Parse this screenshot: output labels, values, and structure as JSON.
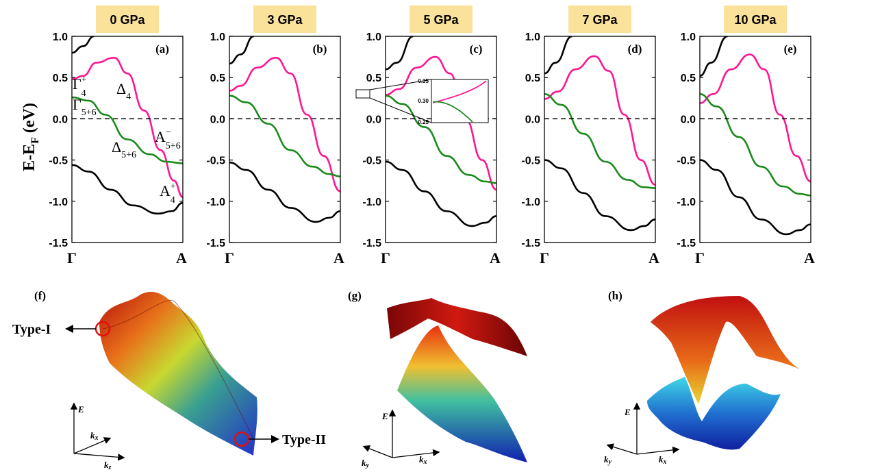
{
  "colors": {
    "band_black": "#000000",
    "band_magenta": "#ff1493",
    "band_green": "#1a8a1a",
    "title_box": "#fbe29a",
    "circle": "#e01010"
  },
  "ylabel": "E-E",
  "ylabel_sub": "F",
  "ylabel_unit": "(eV)",
  "yticks": [
    "1.0",
    "0.5",
    "0.0",
    "-0.5",
    "-1.0",
    "-1.5"
  ],
  "xticks": [
    "Γ",
    "A"
  ],
  "chart_data": [
    {
      "type": "line",
      "title": "0 GPa",
      "label": "(a)",
      "ylim": [
        -1.5,
        1.0
      ],
      "x": [
        0,
        1
      ],
      "xtick_labels": [
        "Γ",
        "A"
      ],
      "series": [
        {
          "values": [
            [
              0,
              0.8
            ],
            [
              0.1,
              0.88
            ],
            [
              0.2,
              1.0
            ]
          ]
        },
        {
          "values": [
            [
              0,
              0.48
            ],
            [
              0.1,
              0.52
            ],
            [
              0.22,
              0.68
            ],
            [
              0.38,
              0.74
            ],
            [
              0.5,
              0.55
            ],
            [
              0.65,
              0.1
            ],
            [
              0.8,
              -0.38
            ],
            [
              0.92,
              -0.75
            ],
            [
              1.0,
              -0.95
            ]
          ]
        },
        {
          "values": [
            [
              0,
              0.26
            ],
            [
              0.15,
              0.22
            ],
            [
              0.3,
              0.05
            ],
            [
              0.5,
              -0.25
            ],
            [
              0.7,
              -0.43
            ],
            [
              0.85,
              -0.52
            ],
            [
              1.0,
              -0.54
            ]
          ]
        },
        {
          "values": [
            [
              0,
              -0.56
            ],
            [
              0.15,
              -0.64
            ],
            [
              0.35,
              -0.86
            ],
            [
              0.55,
              -1.05
            ],
            [
              0.78,
              -1.15
            ],
            [
              0.9,
              -1.12
            ],
            [
              1.0,
              -1.02
            ]
          ]
        }
      ]
    },
    {
      "type": "line",
      "title": "3 GPa",
      "label": "(b)",
      "ylim": [
        -1.5,
        1.0
      ],
      "x": [
        0,
        1
      ],
      "xtick_labels": [
        "Γ",
        "A"
      ],
      "series": [
        {
          "values": [
            [
              0,
              0.67
            ],
            [
              0.1,
              0.78
            ],
            [
              0.22,
              1.0
            ]
          ]
        },
        {
          "values": [
            [
              0,
              0.34
            ],
            [
              0.1,
              0.4
            ],
            [
              0.25,
              0.62
            ],
            [
              0.42,
              0.74
            ],
            [
              0.55,
              0.55
            ],
            [
              0.7,
              0.05
            ],
            [
              0.85,
              -0.45
            ],
            [
              1.0,
              -0.88
            ]
          ]
        },
        {
          "values": [
            [
              0,
              0.28
            ],
            [
              0.15,
              0.2
            ],
            [
              0.35,
              -0.06
            ],
            [
              0.55,
              -0.38
            ],
            [
              0.75,
              -0.58
            ],
            [
              0.9,
              -0.67
            ],
            [
              1.0,
              -0.7
            ]
          ]
        },
        {
          "values": [
            [
              0,
              -0.53
            ],
            [
              0.15,
              -0.62
            ],
            [
              0.35,
              -0.86
            ],
            [
              0.55,
              -1.08
            ],
            [
              0.78,
              -1.25
            ],
            [
              0.9,
              -1.2
            ],
            [
              1.0,
              -1.12
            ]
          ]
        }
      ]
    },
    {
      "type": "line",
      "title": "5 GPa",
      "label": "(c)",
      "ylim": [
        -1.5,
        1.0
      ],
      "x": [
        0,
        1
      ],
      "xtick_labels": [
        "Γ",
        "A"
      ],
      "series": [
        {
          "values": [
            [
              0,
              0.6
            ],
            [
              0.1,
              0.68
            ],
            [
              0.25,
              1.0
            ]
          ]
        },
        {
          "values": [
            [
              0,
              0.29
            ],
            [
              0.12,
              0.36
            ],
            [
              0.28,
              0.62
            ],
            [
              0.45,
              0.75
            ],
            [
              0.58,
              0.55
            ],
            [
              0.72,
              0.0
            ],
            [
              0.87,
              -0.5
            ],
            [
              1.0,
              -0.86
            ]
          ]
        },
        {
          "values": [
            [
              0,
              0.28
            ],
            [
              0.15,
              0.18
            ],
            [
              0.35,
              -0.1
            ],
            [
              0.55,
              -0.45
            ],
            [
              0.75,
              -0.68
            ],
            [
              0.9,
              -0.76
            ],
            [
              1.0,
              -0.78
            ]
          ]
        },
        {
          "values": [
            [
              0,
              -0.52
            ],
            [
              0.15,
              -0.62
            ],
            [
              0.35,
              -0.88
            ],
            [
              0.55,
              -1.12
            ],
            [
              0.78,
              -1.3
            ],
            [
              0.9,
              -1.26
            ],
            [
              1.0,
              -1.18
            ]
          ]
        }
      ]
    },
    {
      "type": "line",
      "title": "7 GPa",
      "label": "(d)",
      "ylim": [
        -1.5,
        1.0
      ],
      "x": [
        0,
        1
      ],
      "xtick_labels": [
        "Γ",
        "A"
      ],
      "series": [
        {
          "values": [
            [
              0,
              0.55
            ],
            [
              0.1,
              0.68
            ],
            [
              0.25,
              1.0
            ]
          ]
        },
        {
          "values": [
            [
              0,
              0.24
            ],
            [
              0.12,
              0.33
            ],
            [
              0.28,
              0.6
            ],
            [
              0.45,
              0.76
            ],
            [
              0.58,
              0.58
            ],
            [
              0.72,
              0.05
            ],
            [
              0.87,
              -0.5
            ],
            [
              1.0,
              -0.8
            ]
          ]
        },
        {
          "values": [
            [
              0,
              0.3
            ],
            [
              0.15,
              0.17
            ],
            [
              0.35,
              -0.18
            ],
            [
              0.55,
              -0.52
            ],
            [
              0.75,
              -0.74
            ],
            [
              0.9,
              -0.83
            ],
            [
              1.0,
              -0.84
            ]
          ]
        },
        {
          "values": [
            [
              0,
              -0.5
            ],
            [
              0.15,
              -0.6
            ],
            [
              0.35,
              -0.9
            ],
            [
              0.55,
              -1.18
            ],
            [
              0.78,
              -1.35
            ],
            [
              0.9,
              -1.3
            ],
            [
              1.0,
              -1.22
            ]
          ]
        }
      ]
    },
    {
      "type": "line",
      "title": "10 GPa",
      "label": "(e)",
      "ylim": [
        -1.5,
        1.0
      ],
      "x": [
        0,
        1
      ],
      "xtick_labels": [
        "Γ",
        "A"
      ],
      "series": [
        {
          "values": [
            [
              0,
              0.52
            ],
            [
              0.1,
              0.68
            ],
            [
              0.25,
              1.0
            ]
          ]
        },
        {
          "values": [
            [
              0,
              0.19
            ],
            [
              0.12,
              0.3
            ],
            [
              0.28,
              0.6
            ],
            [
              0.45,
              0.78
            ],
            [
              0.58,
              0.6
            ],
            [
              0.72,
              0.05
            ],
            [
              0.87,
              -0.45
            ],
            [
              1.0,
              -0.76
            ]
          ]
        },
        {
          "values": [
            [
              0,
              0.3
            ],
            [
              0.15,
              0.15
            ],
            [
              0.35,
              -0.22
            ],
            [
              0.55,
              -0.58
            ],
            [
              0.75,
              -0.82
            ],
            [
              0.9,
              -0.91
            ],
            [
              1.0,
              -0.93
            ]
          ]
        },
        {
          "values": [
            [
              0,
              -0.5
            ],
            [
              0.15,
              -0.62
            ],
            [
              0.35,
              -0.95
            ],
            [
              0.55,
              -1.22
            ],
            [
              0.78,
              -1.4
            ],
            [
              0.9,
              -1.35
            ],
            [
              1.0,
              -1.28
            ]
          ]
        }
      ]
    }
  ],
  "inset": {
    "yticks": [
      "0.35",
      "0.30",
      "0.25"
    ]
  },
  "annotations": {
    "gamma4": "Γ",
    "gamma4_sup": "+",
    "gamma4_sub": "4",
    "gamma56": "Γ",
    "gamma56_sub": "5+6",
    "delta4": "Δ",
    "delta4_sub": "4",
    "delta56": "Δ",
    "delta56_sub": "5+6",
    "a56": "A",
    "a56_sup": "−",
    "a56_sub": "5+6",
    "a4": "A",
    "a4_sup": "+",
    "a4_sub": "4"
  },
  "lower_panels": {
    "f": {
      "label": "(f)",
      "type1": "Type-I",
      "type2": "Type-II",
      "axis_e": "E",
      "axis_k1": "k",
      "axis_k1_sub": "x",
      "axis_k2": "k",
      "axis_k2_sub": "z"
    },
    "g": {
      "label": "(g)",
      "axis_e": "E",
      "axis_k1": "k",
      "axis_k1_sub": "y",
      "axis_k2": "k",
      "axis_k2_sub": "x"
    },
    "h": {
      "label": "(h)",
      "axis_e": "E",
      "axis_k1": "k",
      "axis_k1_sub": "y",
      "axis_k2": "k",
      "axis_k2_sub": "x"
    }
  }
}
